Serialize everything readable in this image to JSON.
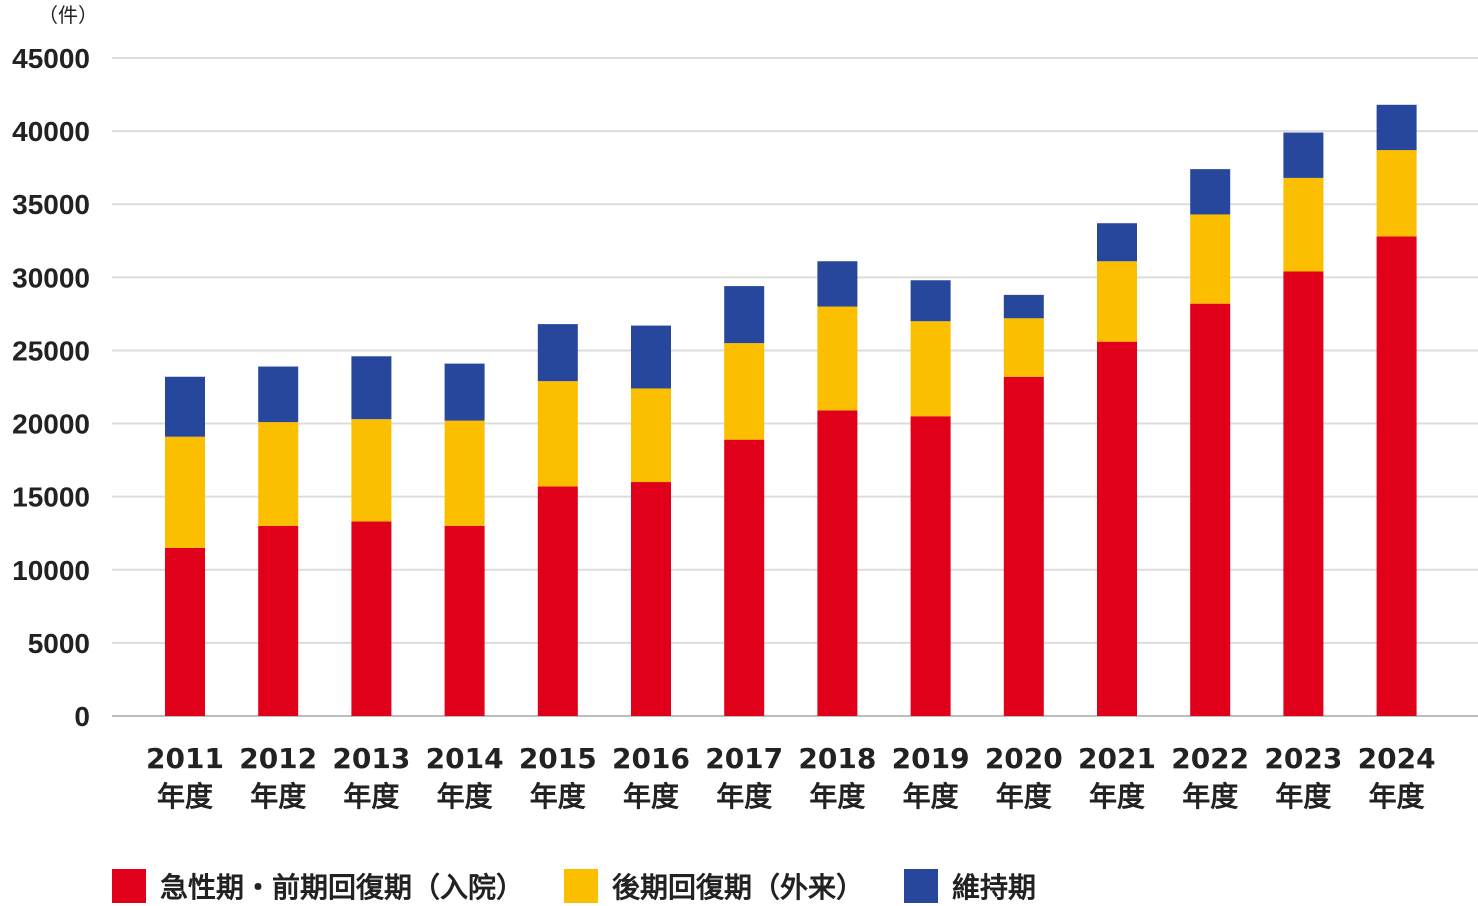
{
  "chart_data": {
    "type": "bar",
    "stacked": true,
    "unit_label": "（件）",
    "categories": [
      "2011",
      "2012",
      "2013",
      "2014",
      "2015",
      "2016",
      "2017",
      "2018",
      "2019",
      "2020",
      "2021",
      "2022",
      "2023",
      "2024"
    ],
    "category_suffix": "年度",
    "series": [
      {
        "name": "急性期・前期回復期（入院）",
        "color": "#e0001a",
        "values": [
          11500,
          13000,
          13300,
          13000,
          15700,
          16000,
          18900,
          20900,
          20500,
          23200,
          25600,
          28200,
          30400,
          32800
        ]
      },
      {
        "name": "後期回復期（外来）",
        "color": "#fbbf00",
        "values": [
          7600,
          7100,
          7000,
          7200,
          7200,
          6400,
          6600,
          7100,
          6500,
          4000,
          5500,
          6100,
          6400,
          5900
        ]
      },
      {
        "name": "維持期",
        "color": "#26479b",
        "values": [
          4100,
          3800,
          4300,
          3900,
          3900,
          4300,
          3900,
          3100,
          2800,
          1600,
          2600,
          3100,
          3100,
          3100
        ]
      }
    ],
    "ylim": [
      0,
      45000
    ],
    "yticks": [
      0,
      5000,
      10000,
      15000,
      20000,
      25000,
      30000,
      35000,
      40000,
      45000
    ],
    "grid": true,
    "legend_position": "bottom"
  }
}
